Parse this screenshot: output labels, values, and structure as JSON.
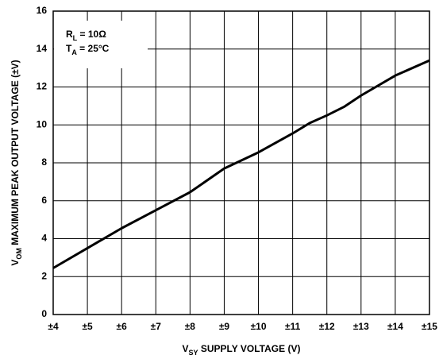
{
  "chart_data": {
    "type": "line",
    "x_label": [
      "V",
      "SY",
      " SUPPLY VOLTAGE (V)"
    ],
    "y_label": [
      "V",
      "OM",
      " MAXIMUM PEAK OUTPUT VOLTAGE (±V)"
    ],
    "annotations": [
      [
        "R",
        "L",
        " = 10Ω"
      ],
      [
        "T",
        "A",
        " = 25°C"
      ]
    ],
    "x": [
      4,
      5,
      6,
      7,
      8,
      9,
      10,
      11,
      11.5,
      12,
      12.5,
      13,
      14,
      15
    ],
    "series": [
      {
        "color": "#000000",
        "values": [
          2.45,
          3.5,
          4.55,
          5.5,
          6.45,
          7.7,
          8.55,
          9.55,
          10.1,
          10.5,
          10.95,
          11.55,
          12.6,
          13.4
        ]
      }
    ],
    "xlim": [
      4,
      15
    ],
    "xticks": [
      {
        "value": 4,
        "label": "±4"
      },
      {
        "value": 5,
        "label": "±5"
      },
      {
        "value": 6,
        "label": "±6"
      },
      {
        "value": 7,
        "label": "±7"
      },
      {
        "value": 8,
        "label": "±8"
      },
      {
        "value": 9,
        "label": "±9"
      },
      {
        "value": 10,
        "label": "±10"
      },
      {
        "value": 11,
        "label": "±11"
      },
      {
        "value": 12,
        "label": "±12"
      },
      {
        "value": 13,
        "label": "±13"
      },
      {
        "value": 14,
        "label": "±14"
      },
      {
        "value": 15,
        "label": "±15"
      }
    ],
    "ylim": [
      0,
      16
    ],
    "yticks": [
      0,
      2,
      4,
      6,
      8,
      10,
      12,
      14,
      16
    ],
    "grid": true
  }
}
